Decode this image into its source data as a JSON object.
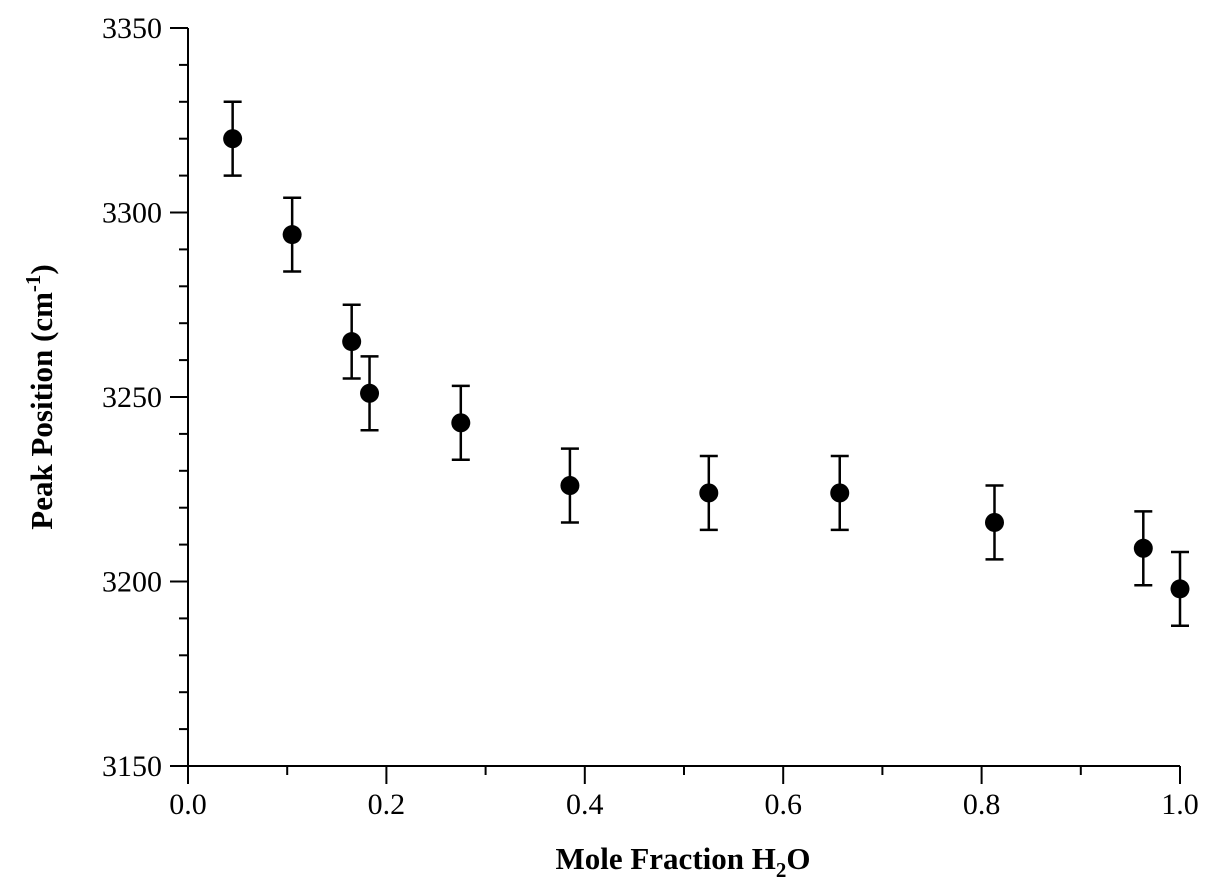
{
  "chart_data": {
    "type": "scatter",
    "title": "",
    "xlabel": {
      "main": "Mole Fraction H",
      "sub": "2",
      "tail": "O"
    },
    "ylabel": {
      "main": "Peak Position (cm",
      "sup": "-1",
      "tail": ")"
    },
    "xlim": [
      0.0,
      1.0
    ],
    "ylim": [
      3150,
      3350
    ],
    "x_ticks": [
      "0.0",
      "0.2",
      "0.4",
      "0.6",
      "0.8",
      "1.0"
    ],
    "y_ticks": [
      "3150",
      "3200",
      "3250",
      "3300",
      "3350"
    ],
    "x_minor_step": 0.1,
    "y_minor_step": 10,
    "grid": false,
    "legend": "none",
    "marker_color": "#000000",
    "series": [
      {
        "x": [
          0.045,
          0.105,
          0.165,
          0.183,
          0.275,
          0.385,
          0.525,
          0.657,
          0.813,
          0.963,
          1.0
        ],
        "y": [
          3320,
          3294,
          3265,
          3251,
          3243,
          3226,
          3224,
          3224,
          3216,
          3209,
          3198
        ],
        "err": [
          10,
          10,
          10,
          10,
          10,
          10,
          10,
          10,
          10,
          10,
          10
        ]
      }
    ]
  }
}
